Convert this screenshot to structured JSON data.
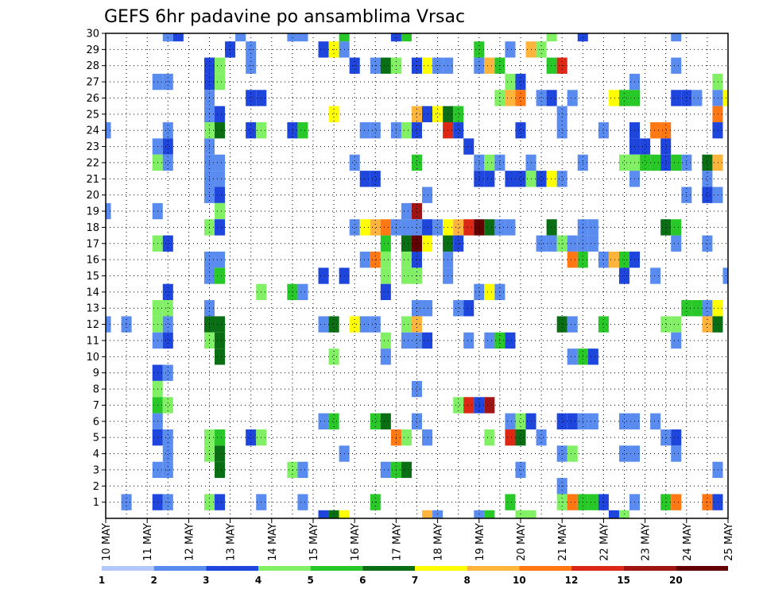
{
  "chart_data": {
    "type": "heatmap",
    "title": "GEFS 6hr padavine po ansamblima Vrsac",
    "xlabel": "",
    "ylabel": "",
    "x_tick_labels": [
      "10 MAY",
      "11 MAY",
      "12 MAY",
      "13 MAY",
      "14 MAY",
      "15 MAY",
      "16 MAY",
      "17 MAY",
      "18 MAY",
      "19 MAY",
      "20 MAY",
      "21 MAY",
      "22 MAY",
      "23 MAY",
      "24 MAY",
      "25 MAY"
    ],
    "x_steps_per_day": 4,
    "x_range": [
      0,
      60
    ],
    "y_tick_labels": [
      "1",
      "2",
      "3",
      "4",
      "5",
      "6",
      "7",
      "8",
      "9",
      "10",
      "11",
      "12",
      "13",
      "14",
      "15",
      "16",
      "17",
      "18",
      "19",
      "20",
      "21",
      "22",
      "23",
      "24",
      "25",
      "26",
      "27",
      "28",
      "29",
      "30"
    ],
    "y_range": [
      0,
      30
    ],
    "grid": true,
    "legend_position": "bottom",
    "colorbar": {
      "labels": [
        "1",
        "2",
        "3",
        "4",
        "5",
        "6",
        "7",
        "8",
        "10",
        "12",
        "15",
        "20"
      ],
      "colors": [
        "#b4c8ff",
        "#5a8cf0",
        "#1e46dc",
        "#82f064",
        "#28c828",
        "#0a6e14",
        "#ffff00",
        "#ffb43c",
        "#ff7814",
        "#dc2814",
        "#a01414",
        "#640000"
      ]
    },
    "cells": [
      [
        6,
        30,
        1
      ],
      [
        7,
        30,
        2
      ],
      [
        13,
        30,
        1
      ],
      [
        18,
        30,
        1
      ],
      [
        19,
        30,
        1
      ],
      [
        23,
        30,
        4
      ],
      [
        28,
        30,
        2
      ],
      [
        29,
        30,
        4
      ],
      [
        43,
        30,
        3
      ],
      [
        46,
        30,
        2
      ],
      [
        55,
        30,
        1
      ],
      [
        12,
        29,
        2
      ],
      [
        14,
        29,
        1
      ],
      [
        21,
        29,
        2
      ],
      [
        22,
        29,
        6
      ],
      [
        23,
        29,
        1
      ],
      [
        36,
        29,
        4
      ],
      [
        39,
        29,
        1
      ],
      [
        41,
        29,
        7
      ],
      [
        42,
        29,
        3
      ],
      [
        10,
        28,
        2
      ],
      [
        11,
        28,
        3
      ],
      [
        14,
        28,
        1
      ],
      [
        24,
        28,
        2
      ],
      [
        26,
        28,
        1
      ],
      [
        27,
        28,
        5
      ],
      [
        28,
        28,
        3
      ],
      [
        30,
        28,
        2
      ],
      [
        31,
        28,
        6
      ],
      [
        32,
        28,
        1
      ],
      [
        33,
        28,
        1
      ],
      [
        36,
        28,
        1
      ],
      [
        37,
        28,
        7
      ],
      [
        38,
        28,
        4
      ],
      [
        43,
        28,
        4
      ],
      [
        44,
        28,
        9
      ],
      [
        55,
        28,
        1
      ],
      [
        5,
        27,
        1
      ],
      [
        6,
        27,
        1
      ],
      [
        10,
        27,
        2
      ],
      [
        11,
        27,
        3
      ],
      [
        39,
        27,
        3
      ],
      [
        40,
        27,
        2
      ],
      [
        51,
        27,
        1
      ],
      [
        59,
        27,
        3
      ],
      [
        10,
        26,
        1
      ],
      [
        14,
        26,
        2
      ],
      [
        15,
        26,
        2
      ],
      [
        38,
        26,
        3
      ],
      [
        39,
        26,
        7
      ],
      [
        40,
        26,
        8
      ],
      [
        42,
        26,
        1
      ],
      [
        43,
        26,
        2
      ],
      [
        45,
        26,
        1
      ],
      [
        49,
        26,
        6
      ],
      [
        50,
        26,
        4
      ],
      [
        51,
        26,
        4
      ],
      [
        55,
        26,
        2
      ],
      [
        56,
        26,
        2
      ],
      [
        57,
        26,
        1
      ],
      [
        59,
        26,
        1
      ],
      [
        60,
        26,
        6
      ],
      [
        10,
        25,
        1
      ],
      [
        11,
        25,
        2
      ],
      [
        22,
        25,
        6
      ],
      [
        30,
        25,
        7
      ],
      [
        31,
        25,
        2
      ],
      [
        32,
        25,
        6
      ],
      [
        33,
        25,
        5
      ],
      [
        34,
        25,
        4
      ],
      [
        44,
        25,
        1
      ],
      [
        59,
        25,
        8
      ],
      [
        0,
        24,
        1
      ],
      [
        6,
        24,
        1
      ],
      [
        10,
        24,
        3
      ],
      [
        11,
        24,
        5
      ],
      [
        14,
        24,
        2
      ],
      [
        15,
        24,
        3
      ],
      [
        18,
        24,
        2
      ],
      [
        19,
        24,
        4
      ],
      [
        25,
        24,
        1
      ],
      [
        26,
        24,
        1
      ],
      [
        28,
        24,
        1
      ],
      [
        29,
        24,
        3
      ],
      [
        30,
        24,
        2
      ],
      [
        33,
        24,
        9
      ],
      [
        34,
        24,
        2
      ],
      [
        40,
        24,
        2
      ],
      [
        44,
        24,
        1
      ],
      [
        48,
        24,
        1
      ],
      [
        51,
        24,
        2
      ],
      [
        53,
        24,
        8
      ],
      [
        54,
        24,
        8
      ],
      [
        59,
        24,
        2
      ],
      [
        5,
        23,
        1
      ],
      [
        6,
        23,
        2
      ],
      [
        10,
        23,
        1
      ],
      [
        35,
        23,
        2
      ],
      [
        51,
        23,
        2
      ],
      [
        52,
        23,
        2
      ],
      [
        54,
        23,
        2
      ],
      [
        5,
        22,
        3
      ],
      [
        6,
        22,
        1
      ],
      [
        10,
        22,
        1
      ],
      [
        11,
        22,
        1
      ],
      [
        24,
        22,
        1
      ],
      [
        30,
        22,
        4
      ],
      [
        36,
        22,
        1
      ],
      [
        37,
        22,
        3
      ],
      [
        38,
        22,
        1
      ],
      [
        41,
        22,
        1
      ],
      [
        46,
        22,
        1
      ],
      [
        50,
        22,
        3
      ],
      [
        51,
        22,
        3
      ],
      [
        52,
        22,
        4
      ],
      [
        53,
        22,
        4
      ],
      [
        54,
        22,
        2
      ],
      [
        55,
        22,
        4
      ],
      [
        56,
        22,
        1
      ],
      [
        58,
        22,
        5
      ],
      [
        59,
        22,
        7
      ],
      [
        10,
        21,
        1
      ],
      [
        11,
        21,
        1
      ],
      [
        25,
        21,
        2
      ],
      [
        26,
        21,
        2
      ],
      [
        36,
        21,
        2
      ],
      [
        37,
        21,
        2
      ],
      [
        39,
        21,
        2
      ],
      [
        40,
        21,
        2
      ],
      [
        41,
        21,
        3
      ],
      [
        42,
        21,
        2
      ],
      [
        43,
        21,
        6
      ],
      [
        44,
        21,
        1
      ],
      [
        51,
        21,
        1
      ],
      [
        58,
        21,
        1
      ],
      [
        10,
        20,
        1
      ],
      [
        11,
        20,
        2
      ],
      [
        31,
        20,
        1
      ],
      [
        56,
        20,
        1
      ],
      [
        58,
        20,
        2
      ],
      [
        59,
        20,
        1
      ],
      [
        0,
        19,
        1
      ],
      [
        5,
        19,
        1
      ],
      [
        11,
        19,
        3
      ],
      [
        29,
        19,
        1
      ],
      [
        30,
        19,
        10
      ],
      [
        10,
        18,
        3
      ],
      [
        11,
        18,
        2
      ],
      [
        24,
        18,
        1
      ],
      [
        25,
        18,
        6
      ],
      [
        26,
        18,
        7
      ],
      [
        27,
        18,
        8
      ],
      [
        28,
        18,
        1
      ],
      [
        29,
        18,
        1
      ],
      [
        30,
        18,
        1
      ],
      [
        31,
        18,
        2
      ],
      [
        32,
        18,
        1
      ],
      [
        33,
        18,
        6
      ],
      [
        34,
        18,
        7
      ],
      [
        35,
        18,
        9
      ],
      [
        36,
        18,
        11
      ],
      [
        37,
        18,
        5
      ],
      [
        38,
        18,
        1
      ],
      [
        39,
        18,
        1
      ],
      [
        43,
        18,
        5
      ],
      [
        46,
        18,
        1
      ],
      [
        47,
        18,
        1
      ],
      [
        54,
        18,
        5
      ],
      [
        55,
        18,
        4
      ],
      [
        5,
        17,
        3
      ],
      [
        6,
        17,
        2
      ],
      [
        27,
        17,
        4
      ],
      [
        29,
        17,
        5
      ],
      [
        30,
        17,
        11
      ],
      [
        31,
        17,
        6
      ],
      [
        33,
        17,
        5
      ],
      [
        34,
        17,
        2
      ],
      [
        42,
        17,
        1
      ],
      [
        43,
        17,
        1
      ],
      [
        44,
        17,
        3
      ],
      [
        45,
        17,
        1
      ],
      [
        46,
        17,
        1
      ],
      [
        47,
        17,
        1
      ],
      [
        55,
        17,
        1
      ],
      [
        58,
        17,
        1
      ],
      [
        10,
        16,
        1
      ],
      [
        11,
        16,
        1
      ],
      [
        25,
        16,
        1
      ],
      [
        26,
        16,
        8
      ],
      [
        27,
        16,
        3
      ],
      [
        29,
        16,
        3
      ],
      [
        30,
        16,
        2
      ],
      [
        33,
        16,
        1
      ],
      [
        45,
        16,
        8
      ],
      [
        46,
        16,
        4
      ],
      [
        48,
        16,
        1
      ],
      [
        49,
        16,
        7
      ],
      [
        50,
        16,
        4
      ],
      [
        51,
        16,
        2
      ],
      [
        10,
        15,
        1
      ],
      [
        11,
        15,
        4
      ],
      [
        21,
        15,
        2
      ],
      [
        23,
        15,
        2
      ],
      [
        27,
        15,
        3
      ],
      [
        29,
        15,
        3
      ],
      [
        30,
        15,
        3
      ],
      [
        33,
        15,
        1
      ],
      [
        50,
        15,
        2
      ],
      [
        53,
        15,
        1
      ],
      [
        60,
        15,
        1
      ],
      [
        6,
        14,
        2
      ],
      [
        15,
        14,
        3
      ],
      [
        18,
        14,
        4
      ],
      [
        19,
        14,
        1
      ],
      [
        27,
        14,
        2
      ],
      [
        36,
        14,
        1
      ],
      [
        37,
        14,
        6
      ],
      [
        38,
        14,
        1
      ],
      [
        5,
        13,
        3
      ],
      [
        6,
        13,
        3
      ],
      [
        10,
        13,
        1
      ],
      [
        30,
        13,
        1
      ],
      [
        31,
        13,
        1
      ],
      [
        34,
        13,
        1
      ],
      [
        35,
        13,
        2
      ],
      [
        56,
        13,
        4
      ],
      [
        57,
        13,
        4
      ],
      [
        58,
        13,
        1
      ],
      [
        59,
        13,
        6
      ],
      [
        0,
        12,
        1
      ],
      [
        2,
        12,
        1
      ],
      [
        5,
        12,
        3
      ],
      [
        6,
        12,
        1
      ],
      [
        10,
        12,
        5
      ],
      [
        11,
        12,
        5
      ],
      [
        21,
        12,
        1
      ],
      [
        22,
        12,
        5
      ],
      [
        24,
        12,
        6
      ],
      [
        25,
        12,
        1
      ],
      [
        26,
        12,
        1
      ],
      [
        29,
        12,
        3
      ],
      [
        30,
        12,
        7
      ],
      [
        44,
        12,
        5
      ],
      [
        45,
        12,
        1
      ],
      [
        48,
        12,
        4
      ],
      [
        54,
        12,
        3
      ],
      [
        55,
        12,
        3
      ],
      [
        58,
        12,
        7
      ],
      [
        59,
        12,
        5
      ],
      [
        5,
        11,
        1
      ],
      [
        6,
        11,
        2
      ],
      [
        10,
        11,
        3
      ],
      [
        11,
        11,
        5
      ],
      [
        27,
        11,
        3
      ],
      [
        29,
        11,
        1
      ],
      [
        30,
        11,
        1
      ],
      [
        31,
        11,
        2
      ],
      [
        35,
        11,
        1
      ],
      [
        37,
        11,
        1
      ],
      [
        38,
        11,
        4
      ],
      [
        39,
        11,
        2
      ],
      [
        55,
        11,
        1
      ],
      [
        11,
        10,
        5
      ],
      [
        22,
        10,
        3
      ],
      [
        27,
        10,
        1
      ],
      [
        45,
        10,
        1
      ],
      [
        46,
        10,
        4
      ],
      [
        47,
        10,
        2
      ],
      [
        5,
        9,
        2
      ],
      [
        6,
        9,
        1
      ],
      [
        5,
        8,
        3
      ],
      [
        30,
        8,
        1
      ],
      [
        5,
        7,
        4
      ],
      [
        6,
        7,
        3
      ],
      [
        34,
        7,
        3
      ],
      [
        35,
        7,
        9
      ],
      [
        36,
        7,
        2
      ],
      [
        37,
        7,
        10
      ],
      [
        5,
        6,
        1
      ],
      [
        21,
        6,
        1
      ],
      [
        22,
        6,
        4
      ],
      [
        26,
        6,
        4
      ],
      [
        27,
        6,
        5
      ],
      [
        30,
        6,
        1
      ],
      [
        39,
        6,
        1
      ],
      [
        40,
        6,
        3
      ],
      [
        41,
        6,
        2
      ],
      [
        44,
        6,
        2
      ],
      [
        45,
        6,
        2
      ],
      [
        46,
        6,
        1
      ],
      [
        47,
        6,
        1
      ],
      [
        50,
        6,
        1
      ],
      [
        51,
        6,
        1
      ],
      [
        53,
        6,
        1
      ],
      [
        5,
        5,
        2
      ],
      [
        6,
        5,
        1
      ],
      [
        10,
        5,
        3
      ],
      [
        11,
        5,
        4
      ],
      [
        14,
        5,
        2
      ],
      [
        15,
        5,
        3
      ],
      [
        28,
        5,
        8
      ],
      [
        29,
        5,
        3
      ],
      [
        31,
        5,
        1
      ],
      [
        37,
        5,
        3
      ],
      [
        39,
        5,
        9
      ],
      [
        40,
        5,
        5
      ],
      [
        42,
        5,
        1
      ],
      [
        54,
        5,
        1
      ],
      [
        55,
        5,
        2
      ],
      [
        6,
        4,
        1
      ],
      [
        10,
        4,
        3
      ],
      [
        11,
        4,
        5
      ],
      [
        23,
        4,
        1
      ],
      [
        44,
        4,
        1
      ],
      [
        45,
        4,
        3
      ],
      [
        50,
        4,
        1
      ],
      [
        51,
        4,
        1
      ],
      [
        55,
        4,
        1
      ],
      [
        5,
        3,
        1
      ],
      [
        6,
        3,
        1
      ],
      [
        11,
        3,
        5
      ],
      [
        18,
        3,
        3
      ],
      [
        19,
        3,
        1
      ],
      [
        27,
        3,
        1
      ],
      [
        28,
        3,
        4
      ],
      [
        29,
        3,
        5
      ],
      [
        40,
        3,
        1
      ],
      [
        59,
        3,
        1
      ],
      [
        44,
        2,
        1
      ],
      [
        2,
        1,
        1
      ],
      [
        5,
        1,
        2
      ],
      [
        6,
        1,
        1
      ],
      [
        10,
        1,
        3
      ],
      [
        11,
        1,
        2
      ],
      [
        15,
        1,
        1
      ],
      [
        19,
        1,
        1
      ],
      [
        26,
        1,
        4
      ],
      [
        39,
        1,
        4
      ],
      [
        44,
        1,
        3
      ],
      [
        45,
        1,
        8
      ],
      [
        46,
        1,
        4
      ],
      [
        47,
        1,
        4
      ],
      [
        48,
        1,
        2
      ],
      [
        51,
        1,
        1
      ],
      [
        54,
        1,
        4
      ],
      [
        55,
        1,
        8
      ],
      [
        58,
        1,
        8
      ],
      [
        59,
        1,
        2
      ],
      [
        21,
        0,
        2
      ],
      [
        22,
        0,
        5
      ],
      [
        23,
        0,
        6
      ],
      [
        31,
        0,
        7
      ],
      [
        32,
        0,
        1
      ],
      [
        36,
        0,
        1
      ],
      [
        37,
        0,
        4
      ],
      [
        40,
        0,
        3
      ],
      [
        41,
        0,
        3
      ],
      [
        49,
        0,
        2
      ],
      [
        50,
        0,
        3
      ]
    ]
  }
}
